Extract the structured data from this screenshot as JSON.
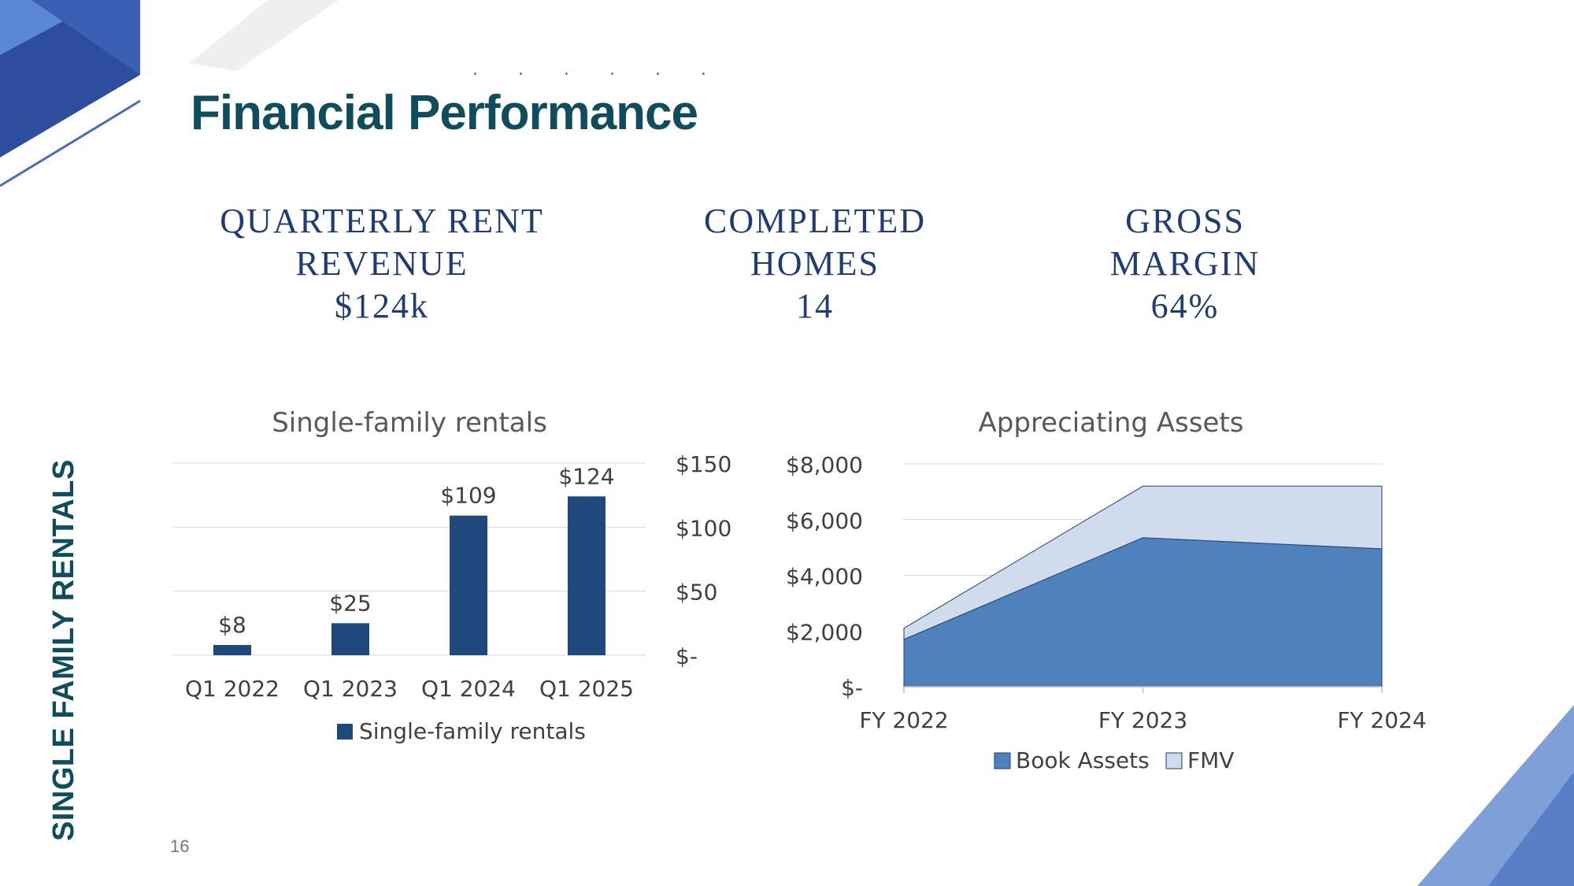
{
  "slide": {
    "title": "Financial Performance",
    "title_dots": ". . . . . .",
    "side_label": "SINGLE FAMILY RENTALS",
    "page_number": "16"
  },
  "kpis": [
    {
      "label_line1": "QUARTERLY RENT",
      "label_line2": "REVENUE",
      "value": "$124k"
    },
    {
      "label_line1": "COMPLETED",
      "label_line2": "HOMES",
      "value": "14"
    },
    {
      "label_line1": "GROSS",
      "label_line2": "MARGIN",
      "value": "64%"
    }
  ],
  "colors": {
    "bar": "#1f497d",
    "book_assets": "#4f81bd",
    "fmv": "#d0dcec",
    "text": "#404040",
    "grid": "#d9d9d9",
    "banner_dark": "#2e4d9e",
    "banner_light": "#5b87d6"
  },
  "chart_data": [
    {
      "type": "bar",
      "title": "Single-family rentals",
      "categories": [
        "Q1 2022",
        "Q1 2023",
        "Q1 2024",
        "Q1 2025"
      ],
      "series": [
        {
          "name": "Single-family rentals",
          "values": [
            8,
            25,
            109,
            124
          ]
        }
      ],
      "data_labels": [
        "$8",
        "$25",
        "$109",
        "$124"
      ],
      "y_ticks": [
        "$-",
        "$50",
        "$100",
        "$150"
      ],
      "ylim": [
        0,
        150
      ],
      "y_axis_side": "right",
      "grid": true,
      "legend": "bottom"
    },
    {
      "type": "area",
      "title": "Appreciating Assets",
      "categories": [
        "FY 2022",
        "FY 2023",
        "FY 2024"
      ],
      "series": [
        {
          "name": "Book Assets",
          "values": [
            1700,
            5350,
            4950
          ]
        },
        {
          "name": "FMV",
          "values": [
            2100,
            7200,
            7200
          ]
        }
      ],
      "y_ticks": [
        "$-",
        "$2,000",
        "$4,000",
        "$6,000",
        "$8,000"
      ],
      "ylim": [
        0,
        8000
      ],
      "y_axis_side": "left",
      "grid": true,
      "legend": "bottom"
    }
  ]
}
